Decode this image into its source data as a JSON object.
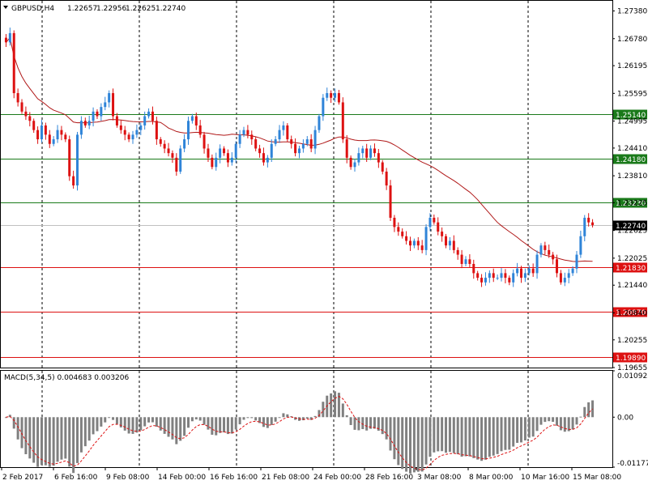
{
  "chart_data": [
    {
      "type": "candlestick",
      "symbol": "GBPUSD,H4",
      "ohlc_header": [
        "1.22657",
        "1.22956",
        "1.22625",
        "1.22740"
      ],
      "ylim": [
        1.19655,
        1.276
      ],
      "y_ticks": [
        "1.27380",
        "1.26780",
        "1.26195",
        "1.25595",
        "1.24995",
        "1.24410",
        "1.23810",
        "1.23225",
        "1.22625",
        "1.22025",
        "1.21440",
        "1.20840",
        "1.20255",
        "1.19655"
      ],
      "x_ticks": [
        "2 Feb 2017",
        "6 Feb 16:00",
        "9 Feb 08:00",
        "14 Feb 00:00",
        "16 Feb 16:00",
        "21 Feb 08:00",
        "24 Feb 00:00",
        "28 Feb 16:00",
        "3 Mar 08:00",
        "8 Mar 00:00",
        "10 Mar 16:00",
        "15 Mar 08:00"
      ],
      "current_price": "1.22740",
      "levels": [
        {
          "value": 1.2514,
          "label": "1.25140",
          "color": "#1a7a1a"
        },
        {
          "value": 1.2418,
          "label": "1.24180",
          "color": "#1a7a1a"
        },
        {
          "value": 1.2323,
          "label": "1.23230",
          "color": "#1a7a1a"
        },
        {
          "value": 1.2183,
          "label": "1.21830",
          "color": "#dd1111"
        },
        {
          "value": 1.2087,
          "label": "1.20870",
          "color": "#dd1111"
        },
        {
          "value": 1.1989,
          "label": "1.19890",
          "color": "#dd1111"
        }
      ],
      "closes": [
        1.267,
        1.269,
        1.256,
        1.254,
        1.252,
        1.251,
        1.25,
        1.248,
        1.246,
        1.249,
        1.247,
        1.245,
        1.246,
        1.248,
        1.247,
        1.246,
        1.238,
        1.236,
        1.247,
        1.25,
        1.249,
        1.25,
        1.252,
        1.251,
        1.253,
        1.254,
        1.256,
        1.251,
        1.249,
        1.248,
        1.247,
        1.246,
        1.247,
        1.248,
        1.249,
        1.251,
        1.252,
        1.25,
        1.246,
        1.245,
        1.244,
        1.243,
        1.242,
        1.239,
        1.244,
        1.246,
        1.25,
        1.251,
        1.249,
        1.247,
        1.244,
        1.242,
        1.24,
        1.242,
        1.244,
        1.243,
        1.241,
        1.242,
        1.245,
        1.247,
        1.248,
        1.247,
        1.246,
        1.244,
        1.243,
        1.241,
        1.242,
        1.245,
        1.246,
        1.248,
        1.249,
        1.246,
        1.245,
        1.243,
        1.244,
        1.245,
        1.246,
        1.244,
        1.248,
        1.251,
        1.255,
        1.256,
        1.255,
        1.256,
        1.254,
        1.246,
        1.242,
        1.24,
        1.241,
        1.243,
        1.244,
        1.242,
        1.244,
        1.243,
        1.241,
        1.239,
        1.236,
        1.229,
        1.227,
        1.226,
        1.225,
        1.224,
        1.223,
        1.224,
        1.223,
        1.222,
        1.227,
        1.229,
        1.228,
        1.226,
        1.225,
        1.223,
        1.224,
        1.222,
        1.221,
        1.219,
        1.22,
        1.219,
        1.217,
        1.216,
        1.215,
        1.216,
        1.217,
        1.216,
        1.216,
        1.217,
        1.216,
        1.215,
        1.217,
        1.218,
        1.216,
        1.217,
        1.218,
        1.217,
        1.221,
        1.223,
        1.222,
        1.221,
        1.22,
        1.217,
        1.215,
        1.216,
        1.217,
        1.218,
        1.221,
        1.225,
        1.229,
        1.228,
        1.2274
      ],
      "ma_label": "Moving Average",
      "ma_color": "#b01818",
      "up_color": "#2f84d8",
      "down_color": "#dd1111"
    },
    {
      "type": "histogram",
      "title": "MACD(5,34,5) 0.004683 0.003206",
      "ylim": [
        -0.011776,
        0.010923
      ],
      "y_ticks": [
        "0.010923",
        "0.00",
        "-0.011776"
      ],
      "bar_color": "#808080",
      "signal_color": "#dd1111"
    }
  ]
}
